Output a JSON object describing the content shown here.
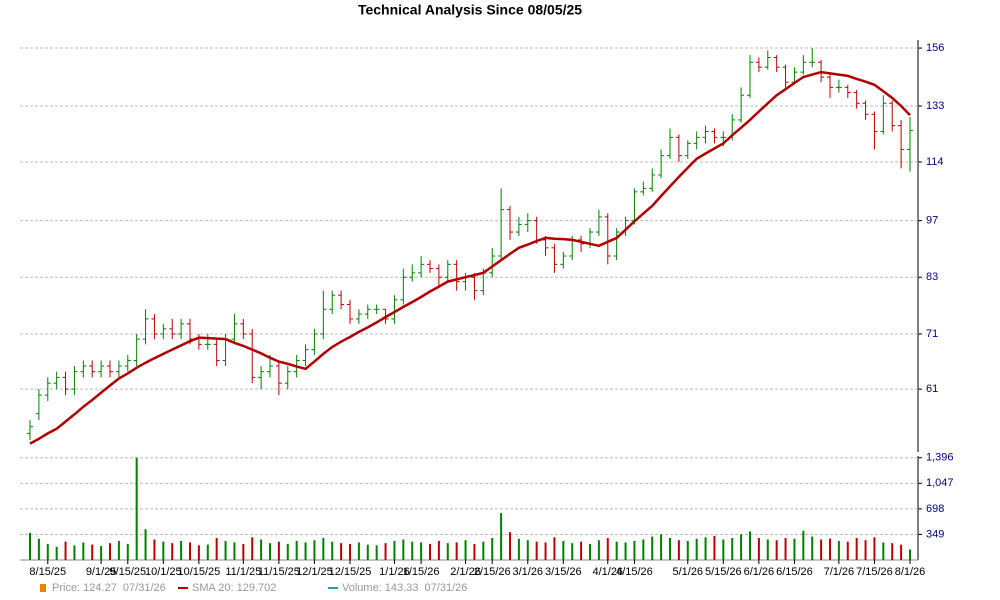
{
  "chart_data": {
    "type": "ohlc",
    "title": "Technical Analysis Since 08/05/25",
    "log_scale": true,
    "grid": true,
    "ylim": [
      51.3,
      159.5
    ],
    "yticks": [
      61,
      71,
      83,
      97,
      114,
      133,
      156
    ],
    "up_color": "#008000",
    "down_color": "#c00000",
    "categories": [
      null,
      null,
      "8/15/25",
      null,
      null,
      null,
      null,
      null,
      "9/1/25",
      null,
      null,
      "9/15/25",
      null,
      null,
      null,
      "10/1/25",
      null,
      null,
      null,
      "10/15/25",
      null,
      null,
      null,
      null,
      "11/1/25",
      null,
      null,
      null,
      "11/15/25",
      null,
      null,
      null,
      "12/1/25",
      null,
      null,
      null,
      "12/15/25",
      null,
      null,
      null,
      null,
      "1/1/26",
      null,
      null,
      "1/15/26",
      null,
      null,
      null,
      null,
      "2/1/26",
      null,
      null,
      "2/15/26",
      null,
      null,
      null,
      "3/1/26",
      null,
      null,
      null,
      "3/15/26",
      null,
      null,
      null,
      null,
      "4/1/26",
      null,
      null,
      "4/15/26",
      null,
      null,
      null,
      null,
      null,
      "5/1/26",
      null,
      null,
      null,
      "5/15/26",
      null,
      null,
      null,
      "6/1/26",
      null,
      null,
      null,
      "6/15/26",
      null,
      null,
      null,
      null,
      "7/1/26",
      null,
      null,
      null,
      "7/15/26",
      null,
      null,
      null,
      "8/1/26"
    ],
    "ohlc": [
      [
        54,
        56,
        53,
        55
      ],
      [
        57,
        61,
        56,
        60
      ],
      [
        60,
        63,
        59,
        62
      ],
      [
        62,
        64,
        61,
        63
      ],
      [
        63,
        64,
        60,
        61
      ],
      [
        61,
        65,
        60,
        64
      ],
      [
        64,
        66,
        63,
        65
      ],
      [
        65,
        66,
        63,
        64
      ],
      [
        64,
        66,
        63,
        65
      ],
      [
        65,
        66,
        63,
        64
      ],
      [
        64,
        66,
        63,
        65
      ],
      [
        65,
        67,
        64,
        66
      ],
      [
        66,
        71,
        65,
        70
      ],
      [
        70,
        76,
        69,
        74
      ],
      [
        74,
        75,
        70,
        71
      ],
      [
        71,
        73,
        70,
        72
      ],
      [
        72,
        74,
        70,
        71
      ],
      [
        71,
        74,
        70,
        73
      ],
      [
        73,
        74,
        69,
        70
      ],
      [
        70,
        71,
        68,
        69
      ],
      [
        69,
        71,
        68,
        69
      ],
      [
        69,
        70,
        65,
        66
      ],
      [
        66,
        71,
        65,
        70
      ],
      [
        70,
        75,
        69,
        73
      ],
      [
        73,
        74,
        70,
        71
      ],
      [
        71,
        72,
        62,
        63
      ],
      [
        63,
        65,
        61,
        64
      ],
      [
        64,
        67,
        63,
        65
      ],
      [
        65,
        66,
        60,
        62
      ],
      [
        62,
        65,
        61,
        64
      ],
      [
        64,
        67,
        63,
        66
      ],
      [
        66,
        69,
        65,
        68
      ],
      [
        68,
        72,
        67,
        71
      ],
      [
        71,
        80,
        70,
        76
      ],
      [
        76,
        80,
        75,
        79
      ],
      [
        79,
        80,
        76,
        77
      ],
      [
        77,
        78,
        73,
        74
      ],
      [
        74,
        76,
        73,
        75
      ],
      [
        75,
        77,
        74,
        76
      ],
      [
        76,
        77,
        75,
        76
      ],
      [
        76,
        76,
        73,
        74
      ],
      [
        74,
        79,
        73,
        78
      ],
      [
        78,
        85,
        77,
        83
      ],
      [
        83,
        86,
        82,
        84
      ],
      [
        84,
        88,
        83,
        86
      ],
      [
        86,
        87,
        84,
        85
      ],
      [
        85,
        86,
        81,
        83
      ],
      [
        83,
        87,
        82,
        86
      ],
      [
        86,
        87,
        80,
        82
      ],
      [
        82,
        84,
        80,
        83
      ],
      [
        83,
        84,
        78,
        80
      ],
      [
        80,
        85,
        79,
        84
      ],
      [
        84,
        90,
        83,
        88
      ],
      [
        88,
        106,
        87,
        100
      ],
      [
        100,
        101,
        92,
        94
      ],
      [
        94,
        98,
        93,
        96
      ],
      [
        96,
        99,
        94,
        97
      ],
      [
        97,
        98,
        91,
        92
      ],
      [
        92,
        93,
        88,
        90
      ],
      [
        90,
        91,
        84,
        86
      ],
      [
        86,
        89,
        85,
        88
      ],
      [
        88,
        93,
        87,
        92
      ],
      [
        92,
        93,
        89,
        91
      ],
      [
        91,
        95,
        90,
        94
      ],
      [
        94,
        100,
        93,
        98
      ],
      [
        98,
        99,
        86,
        88
      ],
      [
        88,
        95,
        87,
        94
      ],
      [
        94,
        98,
        93,
        97
      ],
      [
        97,
        106,
        96,
        105
      ],
      [
        105,
        108,
        104,
        106
      ],
      [
        106,
        112,
        105,
        110
      ],
      [
        110,
        118,
        109,
        116
      ],
      [
        116,
        125,
        115,
        122
      ],
      [
        122,
        123,
        114,
        116
      ],
      [
        116,
        121,
        115,
        120
      ],
      [
        120,
        124,
        118,
        122
      ],
      [
        122,
        126,
        120,
        124
      ],
      [
        124,
        125,
        120,
        122
      ],
      [
        122,
        124,
        119,
        122
      ],
      [
        122,
        130,
        121,
        128
      ],
      [
        128,
        140,
        127,
        137
      ],
      [
        137,
        153,
        136,
        150
      ],
      [
        150,
        152,
        146,
        148
      ],
      [
        148,
        155,
        147,
        152
      ],
      [
        152,
        153,
        146,
        148
      ],
      [
        148,
        149,
        140,
        142
      ],
      [
        142,
        148,
        141,
        146
      ],
      [
        146,
        153,
        145,
        150
      ],
      [
        150,
        156,
        148,
        150
      ],
      [
        150,
        151,
        142,
        144
      ],
      [
        144,
        146,
        136,
        140
      ],
      [
        140,
        143,
        138,
        140
      ],
      [
        140,
        141,
        136,
        138
      ],
      [
        138,
        139,
        132,
        134
      ],
      [
        134,
        135,
        128,
        130
      ],
      [
        130,
        131,
        118,
        124
      ],
      [
        124,
        137,
        123,
        134
      ],
      [
        134,
        135,
        124,
        126
      ],
      [
        126,
        128,
        112,
        118
      ],
      [
        118,
        129,
        111,
        124.27
      ]
    ],
    "sma": {
      "color": "#b00000",
      "values": [
        52.5,
        53.2,
        54.0,
        54.7,
        55.8,
        56.9,
        58.1,
        59.2,
        60.4,
        61.6,
        62.8,
        63.7,
        64.7,
        65.6,
        66.4,
        67.2,
        68.0,
        68.8,
        69.6,
        70.3,
        70.2,
        70.1,
        70.0,
        69.3,
        68.7,
        68.0,
        67.3,
        66.5,
        65.8,
        65.4,
        64.9,
        64.5,
        65.8,
        67.2,
        68.5,
        69.5,
        70.4,
        71.4,
        72.3,
        73.3,
        74.4,
        75.4,
        76.5,
        77.5,
        78.6,
        79.8,
        80.9,
        82.0,
        82.5,
        83.0,
        83.5,
        84.0,
        85.5,
        87.0,
        88.5,
        90.0,
        90.8,
        91.7,
        92.5,
        92.3,
        92.2,
        92.0,
        91.5,
        91.0,
        90.5,
        91.5,
        92.5,
        94.6,
        96.8,
        98.9,
        101,
        103.8,
        106.6,
        109.4,
        112.2,
        115,
        116.7,
        118.3,
        120,
        122.7,
        125.3,
        128,
        131,
        134,
        137,
        139.3,
        141.7,
        144,
        145,
        146,
        145.5,
        145,
        144.5,
        143.3,
        142.2,
        141,
        138.5,
        136,
        133,
        129.702
      ]
    },
    "volume": {
      "ylim": [
        0,
        1420
      ],
      "yticks": [
        349,
        698,
        {
          "value": 1047,
          "label": "1,047"
        },
        {
          "value": 1396,
          "label": "1,396"
        }
      ],
      "values": [
        370,
        290,
        220,
        180,
        250,
        200,
        240,
        210,
        190,
        230,
        260,
        220,
        1396,
        420,
        280,
        250,
        230,
        260,
        240,
        200,
        210,
        300,
        260,
        240,
        220,
        310,
        280,
        230,
        250,
        220,
        260,
        240,
        270,
        300,
        250,
        230,
        220,
        240,
        210,
        200,
        230,
        260,
        280,
        250,
        240,
        220,
        260,
        230,
        240,
        270,
        220,
        250,
        300,
        640,
        380,
        290,
        270,
        250,
        240,
        310,
        260,
        230,
        250,
        220,
        270,
        300,
        250,
        240,
        260,
        280,
        320,
        350,
        300,
        270,
        260,
        290,
        310,
        330,
        280,
        300,
        350,
        390,
        300,
        280,
        270,
        300,
        290,
        400,
        320,
        280,
        290,
        260,
        250,
        300,
        270,
        310,
        240,
        230,
        210,
        143.33
      ]
    },
    "legend": [
      {
        "label": "Price: 124.27  07/31/26",
        "color": "#f08000"
      },
      {
        "label": "SMA 20: 129.702",
        "color": "#b00000"
      },
      {
        "label": "Volume: 143.33  07/31/26",
        "color": "#20a0a0"
      }
    ]
  }
}
